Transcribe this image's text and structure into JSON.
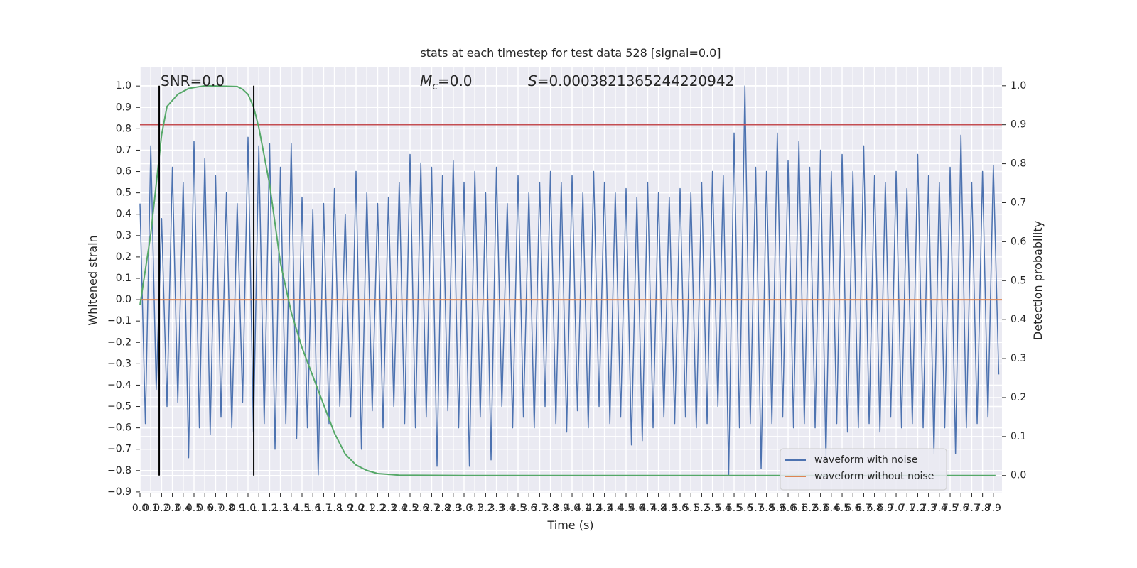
{
  "chart_data": {
    "type": "line",
    "title": "stats at each timestep for test data 528 [signal=0.0]",
    "xlabel": "Time (s)",
    "ylabel": "Whitened strain",
    "y2label": "Detection probability",
    "annotations": [
      {
        "text": "SNR=0.0"
      },
      {
        "symbol": "M",
        "subscript": "c",
        "text": "=0.0"
      },
      {
        "symbol": "S",
        "text": "=0.0003821365244220942"
      }
    ],
    "grid": true,
    "legend": "lower right",
    "xlim": [
      0,
      7.98
    ],
    "ylim": [
      -0.907,
      1.087
    ],
    "y2lim": [
      -0.046,
      1.047
    ],
    "xticks": [
      {
        "value": 0,
        "label": "0.0"
      },
      0.1,
      0.2,
      0.3,
      0.4,
      0.5,
      0.6,
      0.7,
      0.8,
      0.9,
      {
        "value": 1,
        "label": "1.0"
      },
      1.1,
      1.2,
      1.3,
      1.4,
      1.5,
      1.6,
      1.7,
      1.8,
      1.9,
      {
        "value": 2,
        "label": "2.0"
      },
      2.1,
      2.2,
      2.3,
      2.4,
      2.5,
      2.6,
      2.7,
      2.8,
      2.9,
      {
        "value": 3,
        "label": "3.0"
      },
      3.1,
      3.2,
      3.3,
      3.4,
      3.5,
      3.6,
      3.7,
      3.8,
      3.9,
      {
        "value": 4,
        "label": "4.0"
      },
      4.1,
      4.2,
      4.3,
      4.4,
      4.5,
      4.6,
      4.7,
      4.8,
      4.9,
      {
        "value": 5,
        "label": "5.0"
      },
      5.1,
      5.2,
      5.3,
      5.4,
      5.5,
      5.6,
      5.7,
      5.8,
      5.9,
      {
        "value": 6,
        "label": "6.0"
      },
      6.1,
      6.2,
      6.3,
      6.4,
      6.5,
      6.6,
      6.7,
      6.8,
      6.9,
      {
        "value": 7,
        "label": "7.0"
      },
      7.1,
      7.2,
      7.3,
      7.4,
      7.5,
      7.6,
      7.7,
      7.8,
      7.9
    ],
    "yticks": [
      {
        "value": 1,
        "label": "1.0"
      },
      0.9,
      0.8,
      0.7,
      0.6,
      0.5,
      0.4,
      0.3,
      0.2,
      0.1,
      {
        "value": 0,
        "label": "0.0"
      },
      {
        "value": -0.1,
        "label": "−0.1"
      },
      {
        "value": -0.2,
        "label": "−0.2"
      },
      {
        "value": -0.3,
        "label": "−0.3"
      },
      {
        "value": -0.4,
        "label": "−0.4"
      },
      {
        "value": -0.5,
        "label": "−0.5"
      },
      {
        "value": -0.6,
        "label": "−0.6"
      },
      {
        "value": -0.7,
        "label": "−0.7"
      },
      {
        "value": -0.8,
        "label": "−0.8"
      },
      {
        "value": -0.9,
        "label": "−0.9"
      }
    ],
    "y2ticks": [
      {
        "value": 0,
        "label": "0.0"
      },
      0.1,
      0.2,
      0.3,
      0.4,
      0.5,
      0.6,
      0.7,
      0.8,
      0.9,
      {
        "value": 1,
        "label": "1.0"
      }
    ],
    "series": [
      {
        "name": "waveform with noise",
        "color": "#4c72b0",
        "x": [
          0,
          0.05,
          0.1,
          0.15,
          0.2,
          0.25,
          0.3,
          0.35,
          0.4,
          0.45,
          0.5,
          0.55,
          0.6,
          0.65,
          0.7,
          0.75,
          0.8,
          0.85,
          0.9,
          0.95,
          1,
          1.05,
          1.1,
          1.15,
          1.2,
          1.25,
          1.3,
          1.35,
          1.4,
          1.45,
          1.5,
          1.55,
          1.6,
          1.65,
          1.7,
          1.75,
          1.8,
          1.85,
          1.9,
          1.95,
          2,
          2.05,
          2.1,
          2.15,
          2.2,
          2.25,
          2.3,
          2.35,
          2.4,
          2.45,
          2.5,
          2.55,
          2.6,
          2.65,
          2.7,
          2.75,
          2.8,
          2.85,
          2.9,
          2.95,
          3,
          3.05,
          3.1,
          3.15,
          3.2,
          3.25,
          3.3,
          3.35,
          3.4,
          3.45,
          3.5,
          3.55,
          3.6,
          3.65,
          3.7,
          3.75,
          3.8,
          3.85,
          3.9,
          3.95,
          4,
          4.05,
          4.1,
          4.15,
          4.2,
          4.25,
          4.3,
          4.35,
          4.4,
          4.45,
          4.5,
          4.55,
          4.6,
          4.65,
          4.7,
          4.75,
          4.8,
          4.85,
          4.9,
          4.95,
          5,
          5.05,
          5.1,
          5.15,
          5.2,
          5.25,
          5.3,
          5.35,
          5.4,
          5.45,
          5.5,
          5.55,
          5.6,
          5.65,
          5.7,
          5.75,
          5.8,
          5.85,
          5.9,
          5.95,
          6,
          6.05,
          6.1,
          6.15,
          6.2,
          6.25,
          6.3,
          6.35,
          6.4,
          6.45,
          6.5,
          6.55,
          6.6,
          6.65,
          6.7,
          6.75,
          6.8,
          6.85,
          6.9,
          6.95,
          7,
          7.05,
          7.1,
          7.15,
          7.2,
          7.25,
          7.3,
          7.35,
          7.4,
          7.45,
          7.5,
          7.55,
          7.6,
          7.65,
          7.7,
          7.75,
          7.8,
          7.85,
          7.9,
          7.95
        ],
        "values": [
          0.45,
          -0.58,
          0.72,
          -0.42,
          0.38,
          -0.5,
          0.62,
          -0.48,
          0.55,
          -0.74,
          0.74,
          -0.6,
          0.66,
          -0.63,
          0.58,
          -0.55,
          0.5,
          -0.6,
          0.45,
          -0.48,
          0.76,
          -0.62,
          0.72,
          -0.58,
          0.73,
          -0.7,
          0.62,
          -0.58,
          0.73,
          -0.65,
          0.48,
          -0.6,
          0.42,
          -0.82,
          0.45,
          -0.58,
          0.52,
          -0.5,
          0.4,
          -0.55,
          0.6,
          -0.7,
          0.5,
          -0.52,
          0.45,
          -0.6,
          0.48,
          -0.5,
          0.55,
          -0.58,
          0.68,
          -0.6,
          0.64,
          -0.55,
          0.62,
          -0.78,
          0.58,
          -0.52,
          0.65,
          -0.6,
          0.55,
          -0.78,
          0.6,
          -0.55,
          0.5,
          -0.75,
          0.62,
          -0.5,
          0.45,
          -0.6,
          0.58,
          -0.55,
          0.5,
          -0.6,
          0.55,
          -0.5,
          0.6,
          -0.58,
          0.55,
          -0.62,
          0.58,
          -0.52,
          0.5,
          -0.6,
          0.6,
          -0.5,
          0.55,
          -0.58,
          0.5,
          -0.55,
          0.52,
          -0.68,
          0.48,
          -0.66,
          0.55,
          -0.6,
          0.5,
          -0.55,
          0.48,
          -0.58,
          0.52,
          -0.55,
          0.5,
          -0.6,
          0.55,
          -0.58,
          0.6,
          -0.5,
          0.58,
          -0.82,
          0.78,
          -0.6,
          1.0,
          -0.58,
          0.62,
          -0.79,
          0.6,
          -0.58,
          0.78,
          -0.55,
          0.65,
          -0.6,
          0.74,
          -0.58,
          0.62,
          -0.6,
          0.7,
          -0.75,
          0.6,
          -0.58,
          0.68,
          -0.62,
          0.6,
          -0.6,
          0.72,
          -0.58,
          0.58,
          -0.62,
          0.55,
          -0.55,
          0.6,
          -0.6,
          0.52,
          -0.58,
          0.68,
          -0.6,
          0.58,
          -0.72,
          0.55,
          -0.6,
          0.62,
          -0.72,
          0.77,
          -0.6,
          0.55,
          -0.58,
          0.6,
          -0.55,
          0.63,
          -0.35
        ]
      },
      {
        "name": "waveform without noise",
        "color": "#dd8452",
        "x": [
          0,
          7.98
        ],
        "values": [
          0,
          0
        ]
      }
    ],
    "detection": {
      "color": "#55a868",
      "axis": "y2",
      "x": [
        0,
        0.1,
        0.2,
        0.25,
        0.35,
        0.45,
        0.6,
        0.9,
        0.95,
        1,
        1.05,
        1.1,
        1.2,
        1.3,
        1.4,
        1.5,
        1.6,
        1.7,
        1.8,
        1.9,
        2,
        2.1,
        2.2,
        2.4,
        3,
        7.92
      ],
      "values": [
        0.437,
        0.62,
        0.874,
        0.947,
        0.978,
        0.993,
        1.0,
        0.998,
        0.991,
        0.978,
        0.947,
        0.893,
        0.747,
        0.546,
        0.419,
        0.328,
        0.255,
        0.182,
        0.109,
        0.055,
        0.027,
        0.013,
        0.005,
        0.001,
        0,
        0
      ]
    },
    "hline": {
      "value": 0.9,
      "axis": "y2",
      "color": "#c44e52"
    },
    "vlines": {
      "values": [
        0.178,
        1.053
      ],
      "ymin": 0,
      "ymax": 1,
      "axis": "y2",
      "color": "#000000"
    }
  }
}
